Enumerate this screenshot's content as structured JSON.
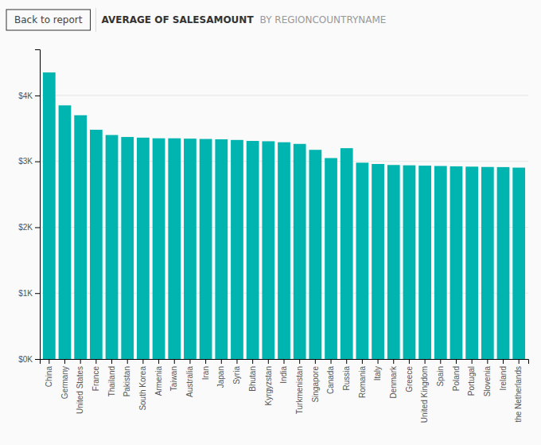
{
  "chart_data": {
    "type": "bar",
    "title": "AVERAGE OF SALESAMOUNT",
    "subtitle": "BY REGIONCOUNTRYNAME",
    "annotations": [
      "Back to report"
    ],
    "categories": [
      "China",
      "Germany",
      "United States",
      "France",
      "Thailand",
      "Pakistan",
      "South Korea",
      "Armenia",
      "Taiwan",
      "Australia",
      "Iran",
      "Japan",
      "Syria",
      "Bhutan",
      "Kyrgyzstan",
      "India",
      "Turkmenistan",
      "Singapore",
      "Canada",
      "Russia",
      "Romania",
      "Italy",
      "Denmark",
      "Greece",
      "United Kingdom",
      "Spain",
      "Poland",
      "Portugal",
      "Slovenia",
      "Ireland",
      "the Netherlands"
    ],
    "values": [
      4350,
      3850,
      3700,
      3480,
      3400,
      3370,
      3360,
      3350,
      3350,
      3345,
      3340,
      3335,
      3325,
      3310,
      3305,
      3290,
      3265,
      3175,
      3050,
      3200,
      2980,
      2960,
      2945,
      2940,
      2935,
      2930,
      2925,
      2920,
      2915,
      2913,
      2905
    ],
    "color": "#00B4B0",
    "ylim": [
      0,
      4700
    ],
    "yticks": [
      {
        "value": 0,
        "label": "$0K"
      },
      {
        "value": 1000,
        "label": "$1K"
      },
      {
        "value": 2000,
        "label": "$2K"
      },
      {
        "value": 3000,
        "label": "$3K"
      },
      {
        "value": 4000,
        "label": "$4K"
      }
    ],
    "grid": true
  }
}
